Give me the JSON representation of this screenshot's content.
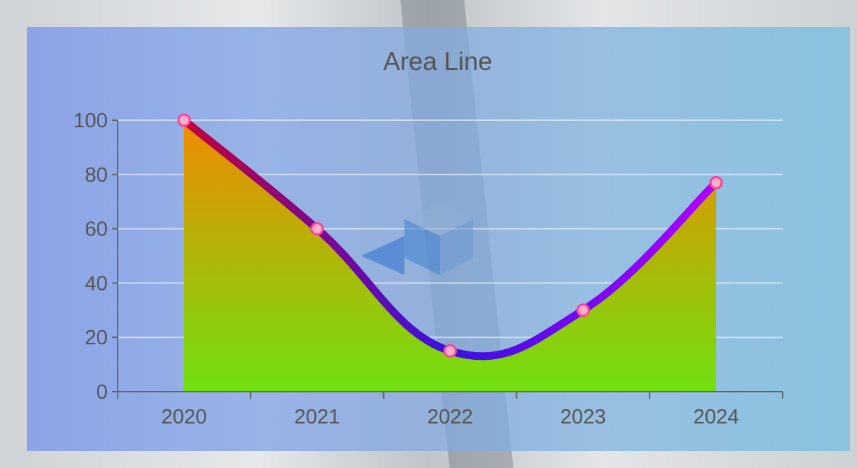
{
  "chart_data": {
    "type": "area",
    "title": "Area Line",
    "categories": [
      "2020",
      "2021",
      "2022",
      "2023",
      "2024"
    ],
    "series": [
      {
        "values": [
          100,
          60,
          15,
          30,
          77
        ]
      }
    ],
    "ylim": [
      0,
      100
    ],
    "yticks": [
      0,
      20,
      40,
      60,
      80,
      100
    ],
    "grid": true,
    "colors": {
      "line_start": "#c0003a",
      "line_mid": "#3a10e0",
      "line_end": "#b000ff",
      "area_top": "#f08a00",
      "area_bottom": "#70e010",
      "marker_fill": "#ffb0c8",
      "marker_stroke": "#ff40a0",
      "axis": "#666666",
      "text": "#555555"
    }
  }
}
